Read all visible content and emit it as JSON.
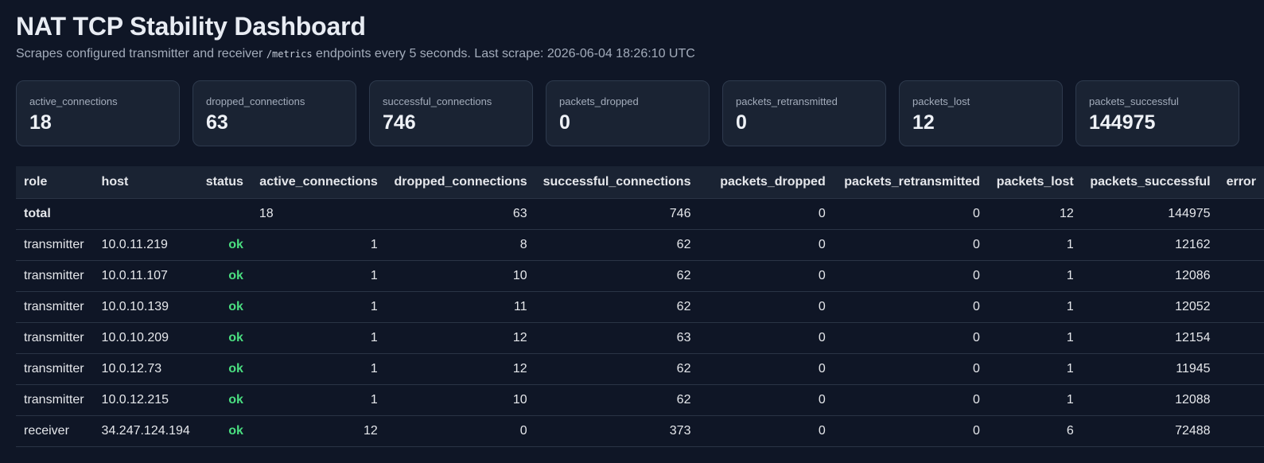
{
  "header": {
    "title": "NAT TCP Stability Dashboard",
    "subtitle_before": "Scrapes configured transmitter and receiver ",
    "subtitle_code": "/metrics",
    "subtitle_after": " endpoints every 5 seconds. Last scrape: 2026-06-04 18:26:10 UTC"
  },
  "cards": [
    {
      "label": "active_connections",
      "value": "18"
    },
    {
      "label": "dropped_connections",
      "value": "63"
    },
    {
      "label": "successful_connections",
      "value": "746"
    },
    {
      "label": "packets_dropped",
      "value": "0"
    },
    {
      "label": "packets_retransmitted",
      "value": "0"
    },
    {
      "label": "packets_lost",
      "value": "12"
    },
    {
      "label": "packets_successful",
      "value": "144975"
    }
  ],
  "table": {
    "columns": [
      "role",
      "host",
      "status",
      "active_connections",
      "dropped_connections",
      "successful_connections",
      "packets_dropped",
      "packets_retransmitted",
      "packets_lost",
      "packets_successful",
      "error"
    ],
    "total": {
      "role": "total",
      "host": "",
      "status": "",
      "active_connections": "18",
      "dropped_connections": "63",
      "successful_connections": "746",
      "packets_dropped": "0",
      "packets_retransmitted": "0",
      "packets_lost": "12",
      "packets_successful": "144975",
      "error": ""
    },
    "rows": [
      {
        "role": "transmitter",
        "host": "10.0.11.219",
        "status": "ok",
        "active_connections": "1",
        "dropped_connections": "8",
        "successful_connections": "62",
        "packets_dropped": "0",
        "packets_retransmitted": "0",
        "packets_lost": "1",
        "packets_successful": "12162",
        "error": ""
      },
      {
        "role": "transmitter",
        "host": "10.0.11.107",
        "status": "ok",
        "active_connections": "1",
        "dropped_connections": "10",
        "successful_connections": "62",
        "packets_dropped": "0",
        "packets_retransmitted": "0",
        "packets_lost": "1",
        "packets_successful": "12086",
        "error": ""
      },
      {
        "role": "transmitter",
        "host": "10.0.10.139",
        "status": "ok",
        "active_connections": "1",
        "dropped_connections": "11",
        "successful_connections": "62",
        "packets_dropped": "0",
        "packets_retransmitted": "0",
        "packets_lost": "1",
        "packets_successful": "12052",
        "error": ""
      },
      {
        "role": "transmitter",
        "host": "10.0.10.209",
        "status": "ok",
        "active_connections": "1",
        "dropped_connections": "12",
        "successful_connections": "63",
        "packets_dropped": "0",
        "packets_retransmitted": "0",
        "packets_lost": "1",
        "packets_successful": "12154",
        "error": ""
      },
      {
        "role": "transmitter",
        "host": "10.0.12.73",
        "status": "ok",
        "active_connections": "1",
        "dropped_connections": "12",
        "successful_connections": "62",
        "packets_dropped": "0",
        "packets_retransmitted": "0",
        "packets_lost": "1",
        "packets_successful": "11945",
        "error": ""
      },
      {
        "role": "transmitter",
        "host": "10.0.12.215",
        "status": "ok",
        "active_connections": "1",
        "dropped_connections": "10",
        "successful_connections": "62",
        "packets_dropped": "0",
        "packets_retransmitted": "0",
        "packets_lost": "1",
        "packets_successful": "12088",
        "error": ""
      },
      {
        "role": "receiver",
        "host": "34.247.124.194",
        "status": "ok",
        "active_connections": "12",
        "dropped_connections": "0",
        "successful_connections": "373",
        "packets_dropped": "0",
        "packets_retransmitted": "0",
        "packets_lost": "6",
        "packets_successful": "72488",
        "error": ""
      }
    ]
  },
  "colors": {
    "background": "#0f1626",
    "card_background": "#1a2333",
    "status_ok": "#4ade80"
  }
}
